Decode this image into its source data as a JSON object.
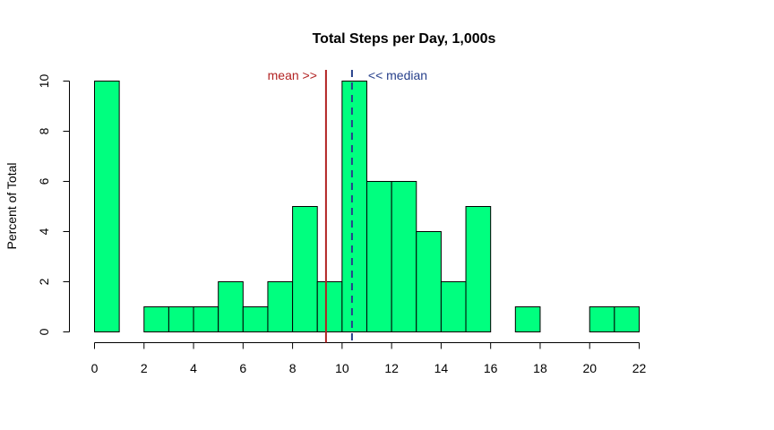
{
  "chart_data": {
    "type": "bar",
    "title": "Total Steps per Day, 1,000s",
    "xlabel": "",
    "ylabel": "Percent of Total",
    "bin_edges": [
      0,
      1,
      2,
      3,
      4,
      5,
      6,
      7,
      8,
      9,
      10,
      11,
      12,
      13,
      14,
      15,
      16,
      17,
      18,
      19,
      20,
      21,
      22
    ],
    "values": [
      10,
      0,
      1,
      1,
      1,
      2,
      1,
      2,
      5,
      2,
      10,
      6,
      6,
      4,
      2,
      5,
      0,
      1,
      0,
      0,
      1,
      1
    ],
    "xlim": [
      0,
      22
    ],
    "ylim": [
      0,
      10
    ],
    "xticks": [
      0,
      2,
      4,
      6,
      8,
      10,
      12,
      14,
      16,
      18,
      20,
      22
    ],
    "yticks": [
      0,
      2,
      4,
      6,
      8,
      10
    ],
    "grid": false,
    "bar_color": "#00FF7F",
    "reference_lines": [
      {
        "name": "mean",
        "label": "mean >>",
        "value": 9.35,
        "color": "#B22222",
        "style": "solid"
      },
      {
        "name": "median",
        "label": "<< median",
        "value": 10.4,
        "color": "#27408B",
        "style": "dashed"
      }
    ]
  }
}
